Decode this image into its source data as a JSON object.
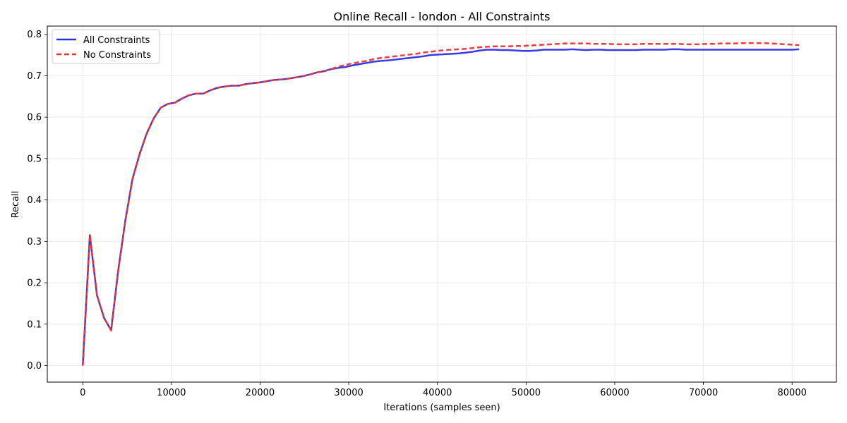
{
  "chart_data": {
    "type": "line",
    "title": "Online Recall - london - All Constraints",
    "xlabel": "Iterations (samples seen)",
    "ylabel": "Recall",
    "xlim": [
      -4000,
      85000
    ],
    "ylim": [
      -0.04,
      0.82
    ],
    "xticks": [
      0,
      10000,
      20000,
      30000,
      40000,
      50000,
      60000,
      70000,
      80000
    ],
    "yticks": [
      0.0,
      0.1,
      0.2,
      0.3,
      0.4,
      0.5,
      0.6,
      0.7,
      0.8
    ],
    "xtick_labels": [
      "0",
      "10000",
      "20000",
      "30000",
      "40000",
      "50000",
      "60000",
      "70000",
      "80000"
    ],
    "ytick_labels": [
      "0.0",
      "0.1",
      "0.2",
      "0.3",
      "0.4",
      "0.5",
      "0.6",
      "0.7",
      "0.8"
    ],
    "grid": true,
    "legend_position": "top-left",
    "x": [
      0,
      800,
      1600,
      2400,
      3200,
      4000,
      4800,
      5600,
      6400,
      7200,
      8000,
      8800,
      9600,
      10400,
      11200,
      12000,
      12800,
      13600,
      14400,
      15200,
      16000,
      16800,
      17600,
      18400,
      19200,
      20000,
      20800,
      21600,
      22400,
      23200,
      24000,
      24800,
      25600,
      26400,
      27200,
      28000,
      28800,
      29600,
      30400,
      31200,
      32000,
      32800,
      33600,
      34400,
      35200,
      36000,
      36800,
      37600,
      38400,
      39200,
      40000,
      40800,
      41600,
      42400,
      43200,
      44000,
      44800,
      45600,
      46400,
      47200,
      48000,
      48800,
      49600,
      50400,
      51200,
      52000,
      52800,
      53600,
      54400,
      55200,
      56000,
      56800,
      57600,
      58400,
      59200,
      60000,
      60800,
      61600,
      62400,
      63200,
      64000,
      64800,
      65600,
      66400,
      67200,
      68000,
      68800,
      69600,
      70400,
      71200,
      72000,
      72800,
      73600,
      74400,
      75200,
      76000,
      76800,
      77600,
      78400,
      79200,
      80000,
      80800
    ],
    "series": [
      {
        "name": "All Constraints",
        "color": "#2f2fe0",
        "style": "solid",
        "values": [
          0.0,
          0.315,
          0.17,
          0.115,
          0.085,
          0.23,
          0.35,
          0.45,
          0.51,
          0.56,
          0.597,
          0.623,
          0.632,
          0.635,
          0.645,
          0.653,
          0.657,
          0.657,
          0.665,
          0.671,
          0.674,
          0.676,
          0.676,
          0.68,
          0.682,
          0.684,
          0.687,
          0.69,
          0.691,
          0.693,
          0.696,
          0.699,
          0.703,
          0.708,
          0.711,
          0.716,
          0.719,
          0.721,
          0.725,
          0.728,
          0.731,
          0.734,
          0.736,
          0.737,
          0.739,
          0.741,
          0.743,
          0.745,
          0.747,
          0.75,
          0.751,
          0.752,
          0.753,
          0.754,
          0.756,
          0.758,
          0.761,
          0.763,
          0.763,
          0.762,
          0.762,
          0.761,
          0.76,
          0.76,
          0.761,
          0.763,
          0.763,
          0.763,
          0.763,
          0.764,
          0.763,
          0.762,
          0.763,
          0.763,
          0.762,
          0.762,
          0.762,
          0.762,
          0.762,
          0.763,
          0.763,
          0.763,
          0.763,
          0.764,
          0.764,
          0.763,
          0.763,
          0.763,
          0.763,
          0.763,
          0.763,
          0.763,
          0.763,
          0.763,
          0.763,
          0.763,
          0.763,
          0.763,
          0.763,
          0.763,
          0.763,
          0.764
        ]
      },
      {
        "name": "No Constraints",
        "color": "#ee3333",
        "style": "dashed",
        "values": [
          0.0,
          0.315,
          0.17,
          0.115,
          0.085,
          0.23,
          0.35,
          0.45,
          0.51,
          0.56,
          0.597,
          0.623,
          0.632,
          0.635,
          0.645,
          0.653,
          0.657,
          0.657,
          0.665,
          0.671,
          0.674,
          0.676,
          0.676,
          0.68,
          0.682,
          0.684,
          0.687,
          0.69,
          0.691,
          0.693,
          0.696,
          0.699,
          0.703,
          0.708,
          0.711,
          0.716,
          0.722,
          0.726,
          0.73,
          0.733,
          0.736,
          0.74,
          0.743,
          0.745,
          0.747,
          0.749,
          0.751,
          0.753,
          0.756,
          0.758,
          0.76,
          0.762,
          0.763,
          0.764,
          0.765,
          0.767,
          0.769,
          0.77,
          0.771,
          0.771,
          0.771,
          0.772,
          0.772,
          0.773,
          0.774,
          0.775,
          0.776,
          0.777,
          0.778,
          0.778,
          0.778,
          0.778,
          0.777,
          0.777,
          0.777,
          0.776,
          0.776,
          0.776,
          0.776,
          0.777,
          0.777,
          0.777,
          0.777,
          0.777,
          0.777,
          0.776,
          0.776,
          0.776,
          0.777,
          0.777,
          0.778,
          0.778,
          0.778,
          0.779,
          0.779,
          0.779,
          0.779,
          0.778,
          0.777,
          0.776,
          0.775,
          0.774
        ]
      }
    ]
  }
}
